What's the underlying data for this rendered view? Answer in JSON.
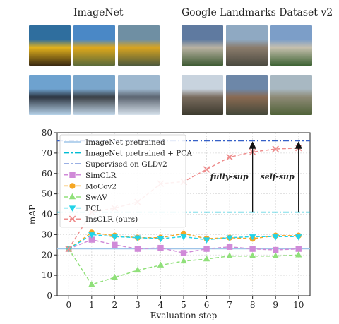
{
  "groups": [
    {
      "title": "ImageNet",
      "images": [
        {
          "name": "school-bus-front-photo",
          "colors": [
            "#2f6e9e",
            "#e3b21c",
            "#3a2a12"
          ]
        },
        {
          "name": "school-bus-side-photo",
          "colors": [
            "#4a88c6",
            "#e0a81a",
            "#5b6a3a"
          ]
        },
        {
          "name": "school-bus-road-photo",
          "colors": [
            "#6f8fa3",
            "#d8a420",
            "#4e5a3c"
          ]
        },
        {
          "name": "stealth-bomber-photo",
          "colors": [
            "#6ea2cf",
            "#2c3440",
            "#b7d3ea"
          ]
        },
        {
          "name": "fighter-jet-photo",
          "colors": [
            "#7aa6cc",
            "#3a3f45",
            "#c3d8ea"
          ]
        },
        {
          "name": "f16-jet-photo",
          "colors": [
            "#9eb8cf",
            "#5b6470",
            "#d7e2ec"
          ]
        }
      ]
    },
    {
      "title": "Google Landmarks Dataset v2",
      "images": [
        {
          "name": "mountain-castle-photo",
          "colors": [
            "#5f7aa0",
            "#b9b2a2",
            "#3f5b34"
          ]
        },
        {
          "name": "cathedral-front-photo",
          "colors": [
            "#8fa9c2",
            "#8b7c6c",
            "#4b4a40"
          ]
        },
        {
          "name": "alpine-chateau-photo",
          "colors": [
            "#7c9ec8",
            "#c6c0ae",
            "#3e6334"
          ]
        },
        {
          "name": "gothic-castle-photo",
          "colors": [
            "#c8d3de",
            "#7a6c5e",
            "#3c3a2e"
          ]
        },
        {
          "name": "manor-house-photo",
          "colors": [
            "#6d87a8",
            "#8a6a52",
            "#43483a"
          ]
        },
        {
          "name": "ruined-castle-photo",
          "colors": [
            "#a8b8c2",
            "#8e8a76",
            "#4f6238"
          ]
        }
      ]
    }
  ],
  "chart_data": {
    "type": "line",
    "xlabel": "Evaluation step",
    "ylabel": "mAP",
    "xlim": [
      -0.5,
      10.5
    ],
    "ylim": [
      0,
      80
    ],
    "xticks": [
      0,
      1,
      2,
      3,
      4,
      5,
      6,
      7,
      8,
      9,
      10
    ],
    "yticks": [
      0,
      10,
      20,
      30,
      40,
      50,
      60,
      70,
      80
    ],
    "grid": true,
    "legend": {
      "position": "top-left"
    },
    "x": [
      0,
      1,
      2,
      3,
      4,
      5,
      6,
      7,
      8,
      9,
      10
    ],
    "reference_lines": [
      {
        "name": "ImageNet pretrained",
        "value": 23,
        "color": "#9fc5e8",
        "style": "solid"
      },
      {
        "name": "ImageNet pretrained + PCA",
        "value": 41,
        "color": "#00bcd4",
        "style": "dashdot"
      },
      {
        "name": "Supervised on GLDv2",
        "value": 76,
        "color": "#3560c8",
        "style": "dashdot"
      }
    ],
    "series": [
      {
        "name": "SimCLR",
        "color": "#d08ad8",
        "marker": "square",
        "values": [
          23,
          27.5,
          25,
          23,
          23.5,
          21,
          23,
          24,
          23,
          22.5,
          23
        ]
      },
      {
        "name": "MoCov2",
        "color": "#f5a623",
        "marker": "circle",
        "values": [
          23,
          31,
          29.5,
          28.5,
          28.5,
          30.5,
          28,
          28.5,
          28,
          29.5,
          29.5
        ]
      },
      {
        "name": "SwAV",
        "color": "#90e07a",
        "marker": "triangle-up",
        "values": [
          23,
          5.5,
          9,
          12.5,
          15,
          17,
          18,
          19.5,
          19.5,
          19.5,
          20
        ]
      },
      {
        "name": "PCL",
        "color": "#22d3e8",
        "marker": "triangle-down",
        "values": [
          23,
          30,
          29,
          28.5,
          28,
          29,
          27.5,
          28.5,
          29,
          29,
          29
        ]
      },
      {
        "name": "InsCLR (ours)",
        "color": "#ee8c8c",
        "marker": "x",
        "values": [
          23,
          41,
          43,
          46,
          55,
          56,
          62,
          68,
          70.5,
          72,
          72.5
        ]
      }
    ],
    "annotations": [
      {
        "text": "fully-sup",
        "x": 8,
        "from": 41,
        "to": 76
      },
      {
        "text": "self-sup",
        "x": 10,
        "from": 41,
        "to": 76
      }
    ]
  }
}
